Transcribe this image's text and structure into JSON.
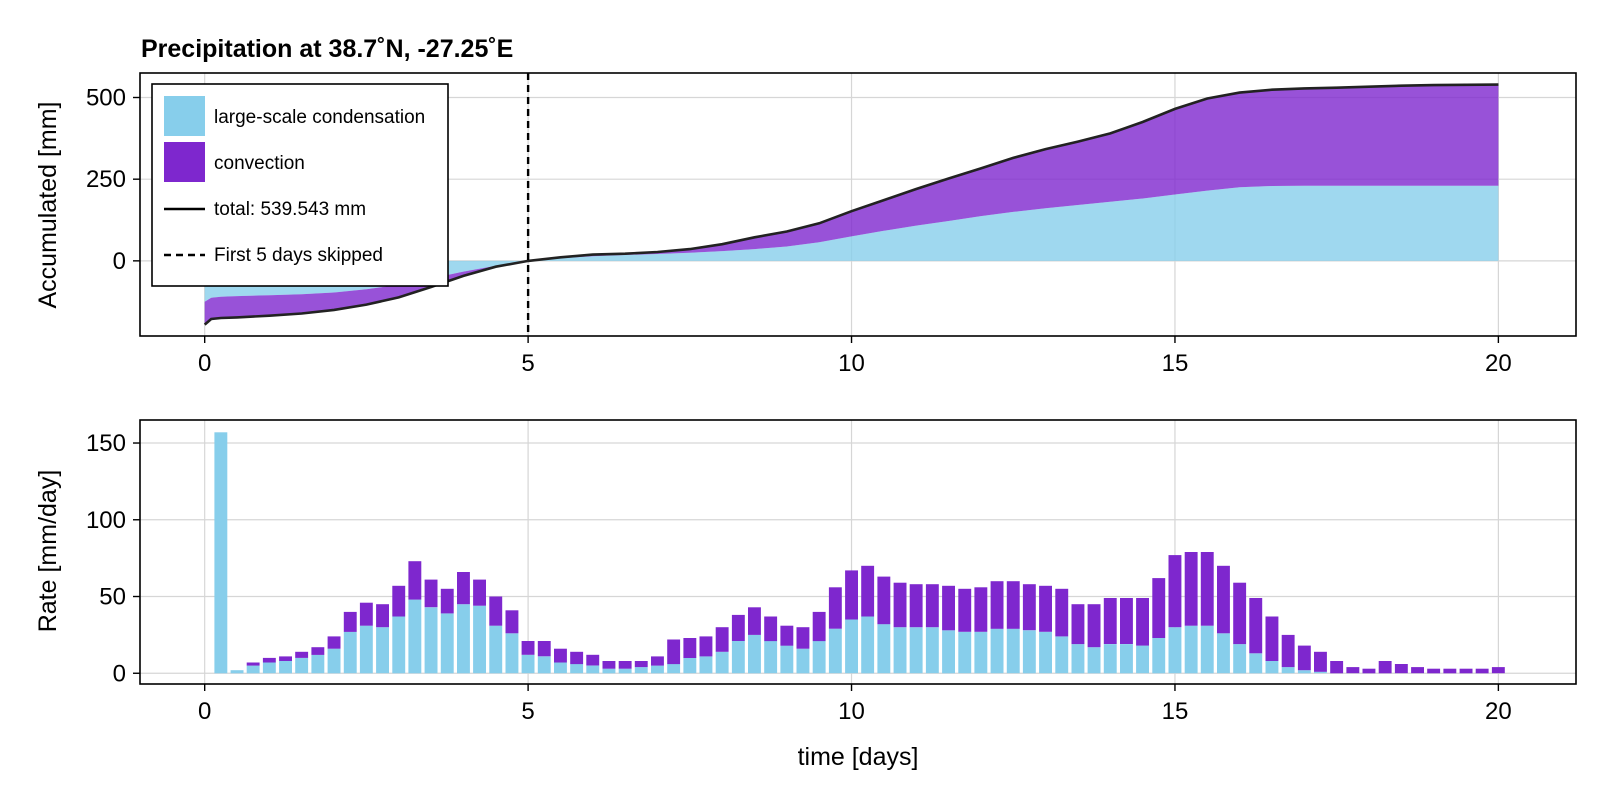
{
  "colors": {
    "large_scale": "#87CEEB",
    "convection": "#7E27CE",
    "total": "#222222",
    "marker": "#000000"
  },
  "chart_data": [
    {
      "type": "area",
      "title": "Precipitation at 38.7˚N, -27.25˚E",
      "xlabel": "",
      "ylabel": "Accumulated [mm]",
      "xlim": [
        -1,
        21.2
      ],
      "ylim": [
        -230,
        575
      ],
      "xticks": [
        0,
        5,
        10,
        15,
        20
      ],
      "yticks": [
        0,
        250,
        500
      ],
      "grid": true,
      "legend": {
        "placement": "top-left",
        "entries": [
          {
            "label": "large-scale condensation",
            "kind": "patch",
            "color": "#87CEEB"
          },
          {
            "label": "convection",
            "kind": "patch",
            "color": "#7E27CE"
          },
          {
            "label": "total: 539.543 mm",
            "kind": "line",
            "color": "#000000"
          },
          {
            "label": "First 5 days skipped",
            "kind": "dashed",
            "color": "#000000"
          }
        ]
      },
      "vline_x": 5,
      "x": [
        0,
        0.1,
        0.25,
        0.5,
        1,
        1.5,
        2,
        2.5,
        3,
        3.5,
        4,
        4.5,
        5,
        5.5,
        6,
        6.5,
        7,
        7.5,
        8,
        8.5,
        9,
        9.5,
        10,
        10.5,
        11,
        11.5,
        12,
        12.5,
        13,
        13.5,
        14,
        14.5,
        15,
        15.5,
        16,
        16.5,
        17,
        17.5,
        18,
        18.5,
        19,
        19.5,
        20
      ],
      "series": [
        {
          "name": "large-scale condensation",
          "values": [
            -125,
            -113,
            -110,
            -108,
            -105,
            -102,
            -97,
            -87,
            -73,
            -54,
            -33,
            -15,
            0,
            8,
            14,
            18,
            21,
            25,
            30,
            36,
            44,
            57,
            75,
            92,
            108,
            122,
            137,
            150,
            161,
            171,
            181,
            191,
            203,
            215,
            225,
            229,
            230,
            230,
            230,
            230,
            230,
            230,
            230
          ]
        },
        {
          "name": "total",
          "values": [
            -195,
            -178,
            -175,
            -173,
            -168,
            -161,
            -150,
            -134,
            -112,
            -80,
            -46,
            -18,
            0,
            11,
            19,
            22,
            27,
            36,
            51,
            72,
            90,
            115,
            152,
            186,
            220,
            252,
            283,
            315,
            342,
            365,
            390,
            425,
            465,
            497,
            515,
            524,
            528,
            530,
            533,
            536,
            538,
            539,
            539.5
          ]
        }
      ]
    },
    {
      "type": "bar",
      "title": "",
      "xlabel": "time [days]",
      "ylabel": "Rate [mm/day]",
      "xlim": [
        -1,
        21.2
      ],
      "ylim": [
        -7,
        165
      ],
      "xticks": [
        0,
        5,
        10,
        15,
        20
      ],
      "yticks": [
        0,
        50,
        100,
        150
      ],
      "grid": true,
      "bar_width": 0.2,
      "x": [
        0.25,
        0.5,
        0.75,
        1,
        1.25,
        1.5,
        1.75,
        2,
        2.25,
        2.5,
        2.75,
        3,
        3.25,
        3.5,
        3.75,
        4,
        4.25,
        4.5,
        4.75,
        5,
        5.25,
        5.5,
        5.75,
        6,
        6.25,
        6.5,
        6.75,
        7,
        7.25,
        7.5,
        7.75,
        8,
        8.25,
        8.5,
        8.75,
        9,
        9.25,
        9.5,
        9.75,
        10,
        10.25,
        10.5,
        10.75,
        11,
        11.25,
        11.5,
        11.75,
        12,
        12.25,
        12.5,
        12.75,
        13,
        13.25,
        13.5,
        13.75,
        14,
        14.25,
        14.5,
        14.75,
        15,
        15.25,
        15.5,
        15.75,
        16,
        16.25,
        16.5,
        16.75,
        17,
        17.25,
        17.5,
        17.75,
        18,
        18.25,
        18.5,
        18.75,
        19,
        19.25,
        19.5,
        19.75,
        20
      ],
      "series": [
        {
          "name": "large-scale condensation",
          "values": [
            157,
            2,
            5,
            7,
            8,
            10,
            12,
            16,
            27,
            31,
            30,
            37,
            48,
            43,
            39,
            45,
            44,
            31,
            26,
            12,
            11,
            7,
            6,
            5,
            3,
            3,
            4,
            5,
            6,
            10,
            11,
            14,
            21,
            25,
            21,
            18,
            16,
            21,
            29,
            35,
            37,
            32,
            30,
            30,
            30,
            28,
            27,
            27,
            29,
            29,
            28,
            27,
            24,
            19,
            17,
            19,
            19,
            18,
            23,
            30,
            31,
            31,
            26,
            19,
            13,
            8,
            4,
            2,
            1,
            0,
            0,
            0,
            0,
            0,
            0,
            0,
            0,
            0,
            0,
            0
          ]
        },
        {
          "name": "convection",
          "values": [
            0,
            0,
            2,
            3,
            3,
            4,
            5,
            8,
            13,
            15,
            15,
            20,
            25,
            18,
            16,
            21,
            17,
            19,
            15,
            9,
            10,
            9,
            8,
            7,
            5,
            5,
            4,
            6,
            16,
            13,
            13,
            16,
            17,
            18,
            16,
            13,
            14,
            19,
            27,
            32,
            33,
            31,
            29,
            28,
            28,
            29,
            28,
            29,
            31,
            31,
            30,
            30,
            31,
            26,
            28,
            30,
            30,
            31,
            39,
            47,
            48,
            48,
            44,
            40,
            36,
            29,
            21,
            16,
            13,
            8,
            4,
            3,
            8,
            6,
            4,
            3,
            3,
            3,
            3,
            4
          ]
        }
      ]
    }
  ]
}
